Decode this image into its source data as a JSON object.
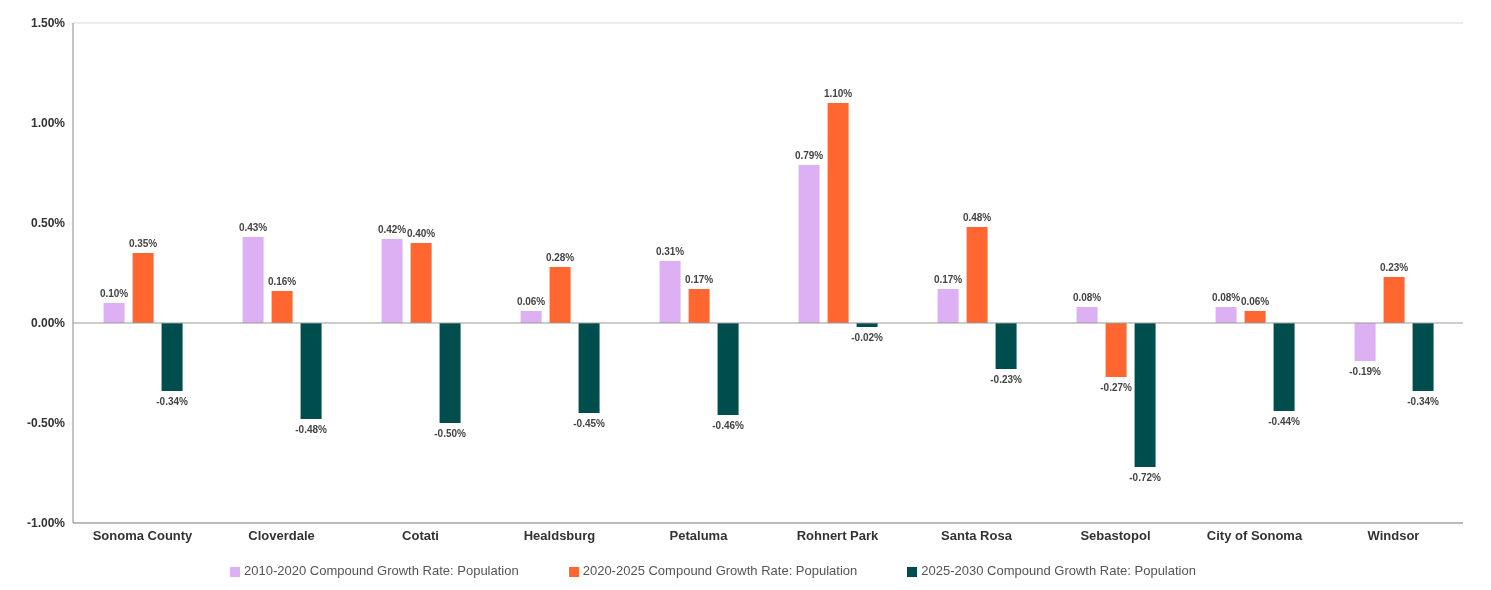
{
  "chart_data": {
    "type": "bar",
    "categories": [
      "Sonoma County",
      "Cloverdale",
      "Cotati",
      "Healdsburg",
      "Petaluma",
      "Rohnert Park",
      "Santa Rosa",
      "Sebastopol",
      "City of Sonoma",
      "Windsor"
    ],
    "series": [
      {
        "name": "2010-2020 Compound Growth Rate: Population",
        "color": "#dcb0f2",
        "values": [
          0.1,
          0.43,
          0.42,
          0.06,
          0.31,
          0.79,
          0.17,
          0.08,
          0.08,
          -0.19
        ],
        "value_labels": [
          "0.10%",
          "0.43%",
          "0.42%",
          "0.06%",
          "0.31%",
          "0.79%",
          "0.17%",
          "0.08%",
          "0.08%",
          "-0.19%"
        ]
      },
      {
        "name": "2020-2025 Compound Growth Rate: Population",
        "color": "#ff6630",
        "values": [
          0.35,
          0.16,
          0.4,
          0.28,
          0.17,
          1.1,
          0.48,
          -0.27,
          0.06,
          0.23
        ],
        "value_labels": [
          "0.35%",
          "0.16%",
          "0.40%",
          "0.28%",
          "0.17%",
          "1.10%",
          "0.48%",
          "-0.27%",
          "0.06%",
          "0.23%"
        ]
      },
      {
        "name": "2025-2030 Compound Growth Rate: Population",
        "color": "#004d4d",
        "values": [
          -0.34,
          -0.48,
          -0.5,
          -0.45,
          -0.46,
          -0.02,
          -0.23,
          -0.72,
          -0.44,
          -0.34
        ],
        "value_labels": [
          "-0.34%",
          "-0.48%",
          "-0.50%",
          "-0.45%",
          "-0.46%",
          "-0.02%",
          "-0.23%",
          "-0.72%",
          "-0.44%",
          "-0.34%"
        ]
      }
    ],
    "ylim": [
      -1,
      1.5
    ],
    "yticks": [
      {
        "value": -1,
        "label": "-1.00%"
      },
      {
        "value": -0.5,
        "label": "-0.50%"
      },
      {
        "value": 0,
        "label": "0.00%"
      },
      {
        "value": 0.5,
        "label": "0.50%"
      },
      {
        "value": 1,
        "label": "1.00%"
      },
      {
        "value": 1.5,
        "label": "1.50%"
      }
    ],
    "grid": "y",
    "legend": "bottom"
  }
}
